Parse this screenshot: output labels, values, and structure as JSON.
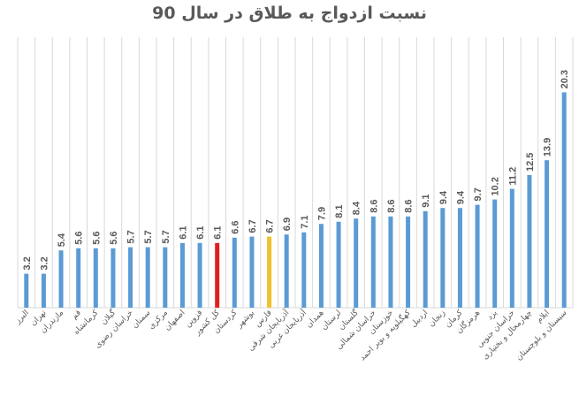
{
  "chart_data": {
    "type": "bar",
    "title": "نسبت ازدواج به طلاق در سال 90",
    "categories": [
      "البرز",
      "تهران",
      "مازندران",
      "قم",
      "کرمانشاه",
      "گیلان",
      "خراسان رضوی",
      "سمنان",
      "مرکزی",
      "اصفهان",
      "قزوین",
      "کل کشور",
      "کردستان",
      "بوشهر",
      "فارس",
      "آذربایجان شرقی",
      "آذربایجان غربی",
      "همدان",
      "لرستان",
      "گلستان",
      "خراسان شمالی",
      "خوزستان",
      "کهگیلویه و بویر احمد",
      "اردبیل",
      "زنجان",
      "کرمان",
      "هرمزگان",
      "یزد",
      "خراسان جنوبی",
      "چهارمحال و بختیاری",
      "ایلام",
      "سیستان و بلوچستان"
    ],
    "values": [
      3.2,
      3.2,
      5.4,
      5.6,
      5.6,
      5.6,
      5.7,
      5.7,
      5.7,
      6.1,
      6.1,
      6.1,
      6.6,
      6.7,
      6.7,
      6.9,
      7.1,
      7.9,
      8.1,
      8.4,
      8.6,
      8.6,
      8.6,
      9.1,
      9.4,
      9.4,
      9.7,
      10.2,
      11.2,
      12.5,
      13.9,
      20.3
    ],
    "value_labels": [
      "3.2",
      "3.2",
      "5.4",
      "5.6",
      "5.6",
      "5.6",
      "5.7",
      "5.7",
      "5.7",
      "6.1",
      "6.1",
      "6.1",
      "6.6",
      "6.7",
      "6.7",
      "6.9",
      "7.1",
      "7.9",
      "8.1",
      "8.4",
      "8.6",
      "8.6",
      "8.6",
      "9.1",
      "9.4",
      "9.4",
      "9.7",
      "10.2",
      "11.2",
      "12.5",
      "13.9",
      "20.3"
    ],
    "ylim": [
      0,
      24
    ],
    "grid": "vertical",
    "colors": {
      "default": "#5B9BD5",
      "highlight_red": "#E02020",
      "highlight_yellow": "#F2C12E",
      "grid": "#D9D9D9",
      "text": "#595959"
    },
    "highlights": {
      "کل کشور": "highlight_red",
      "فارس": "highlight_yellow"
    }
  }
}
